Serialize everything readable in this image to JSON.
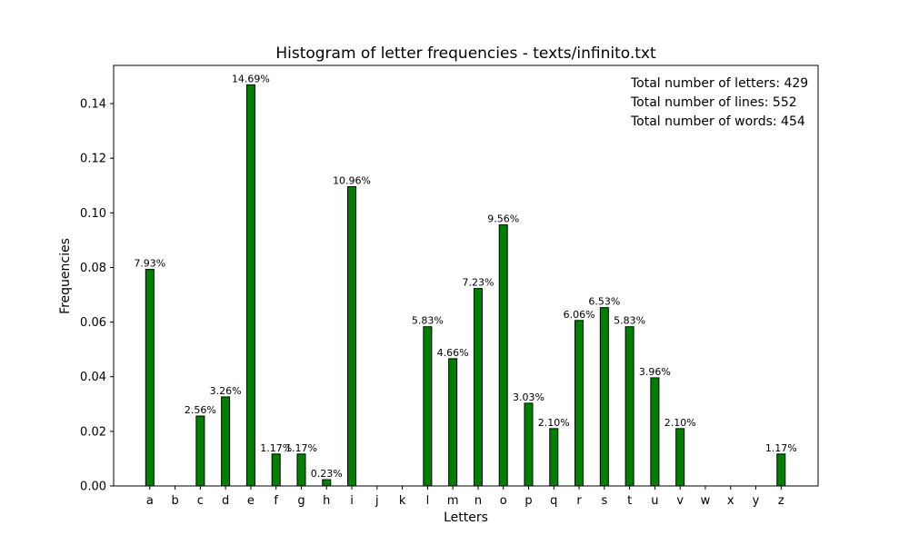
{
  "chart_data": {
    "type": "bar",
    "title": "Histogram of letter frequencies - texts/infinito.txt",
    "xlabel": "Letters",
    "ylabel": "Frequencies",
    "ylim": [
      0,
      0.154
    ],
    "yticks": [
      "0.00",
      "0.02",
      "0.04",
      "0.06",
      "0.08",
      "0.10",
      "0.12",
      "0.14"
    ],
    "categories": [
      "a",
      "b",
      "c",
      "d",
      "e",
      "f",
      "g",
      "h",
      "i",
      "j",
      "k",
      "l",
      "m",
      "n",
      "o",
      "p",
      "q",
      "r",
      "s",
      "t",
      "u",
      "v",
      "w",
      "x",
      "y",
      "z"
    ],
    "values": [
      0.0793,
      0,
      0.0256,
      0.0326,
      0.1469,
      0.0117,
      0.0117,
      0.0023,
      0.1096,
      0,
      0,
      0.0583,
      0.0466,
      0.0723,
      0.0956,
      0.0303,
      0.021,
      0.0606,
      0.0653,
      0.0583,
      0.0396,
      0.021,
      0,
      0,
      0,
      0.0117
    ],
    "labels": [
      "7.93%",
      "",
      "2.56%",
      "3.26%",
      "14.69%",
      "1.17%",
      "1.17%",
      "0.23%",
      "10.96%",
      "",
      "",
      "5.83%",
      "4.66%",
      "7.23%",
      "9.56%",
      "3.03%",
      "2.10%",
      "6.06%",
      "6.53%",
      "5.83%",
      "3.96%",
      "2.10%",
      "",
      "",
      "",
      "1.17%"
    ],
    "bar_color": "#008000",
    "edge_color": "#000000",
    "grid": false,
    "stats": [
      "Total number of letters: 429",
      "Total number of lines: 552",
      "Total number of words: 454"
    ],
    "stats_position": "top-right"
  }
}
